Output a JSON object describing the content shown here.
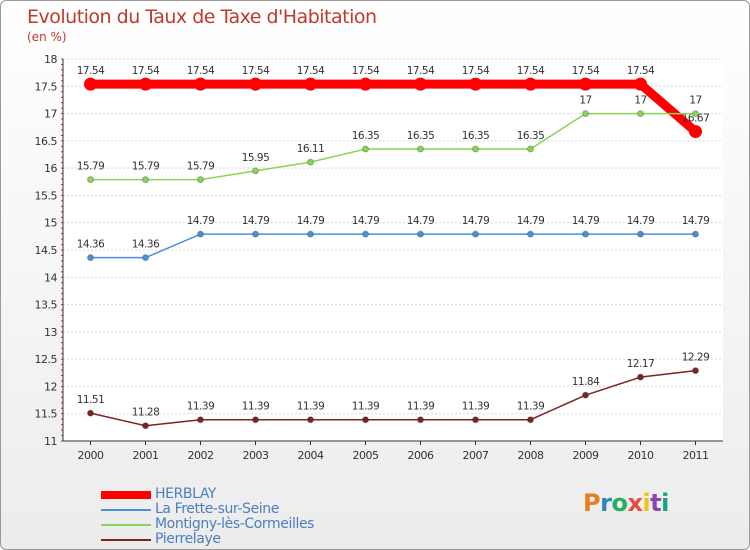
{
  "header": {
    "title": "Evolution du Taux de Taxe d'Habitation",
    "unit": "(en %)"
  },
  "logo": {
    "text": "Proxiti",
    "letter_colors": [
      "#e67e22",
      "#2e86c1",
      "#27ae60",
      "#e74c3c",
      "#f1c40f",
      "#8e44ad",
      "#16a085"
    ]
  },
  "chart_data": {
    "type": "line",
    "title": "Evolution du Taux de Taxe d'Habitation",
    "ylabel": "(en %)",
    "xlabel": "",
    "x": [
      "2000",
      "2001",
      "2002",
      "2003",
      "2004",
      "2005",
      "2006",
      "2007",
      "2008",
      "2009",
      "2010",
      "2011"
    ],
    "ylim": [
      11,
      18
    ],
    "yticks": [
      "11",
      "11.5",
      "12",
      "12.5",
      "13",
      "13.5",
      "14",
      "14.5",
      "15",
      "15.5",
      "16",
      "16.5",
      "17",
      "17.5",
      "18"
    ],
    "grid": "horizontal",
    "legend_position": "bottom-left",
    "series": [
      {
        "name": "HERBLAY",
        "color": "#ff0000",
        "values": [
          17.54,
          17.54,
          17.54,
          17.54,
          17.54,
          17.54,
          17.54,
          17.54,
          17.54,
          17.54,
          17.54,
          16.67
        ],
        "labels": [
          "17.54",
          "17.54",
          "17.54",
          "17.54",
          "17.54",
          "17.54",
          "17.54",
          "17.54",
          "17.54",
          "17.54",
          "17.54",
          "16.67"
        ]
      },
      {
        "name": "La Frette-sur-Seine",
        "color": "#4a90d9",
        "values": [
          14.36,
          14.36,
          14.79,
          14.79,
          14.79,
          14.79,
          14.79,
          14.79,
          14.79,
          14.79,
          14.79,
          14.79
        ],
        "labels": [
          "14.36",
          "14.36",
          "14.79",
          "14.79",
          "14.79",
          "14.79",
          "14.79",
          "14.79",
          "14.79",
          "14.79",
          "14.79",
          "14.79"
        ]
      },
      {
        "name": "Montigny-lès-Cormeilles",
        "color": "#88d455",
        "values": [
          15.79,
          15.79,
          15.79,
          15.95,
          16.11,
          16.35,
          16.35,
          16.35,
          16.35,
          17,
          17,
          17
        ],
        "labels": [
          "15.79",
          "15.79",
          "15.79",
          "15.95",
          "16.11",
          "16.35",
          "16.35",
          "16.35",
          "16.35",
          "17",
          "17",
          "17"
        ]
      },
      {
        "name": "Pierrelaye",
        "color": "#7a2424",
        "values": [
          11.51,
          11.28,
          11.39,
          11.39,
          11.39,
          11.39,
          11.39,
          11.39,
          11.39,
          11.84,
          12.17,
          12.29
        ],
        "labels": [
          "11.51",
          "11.28",
          "11.39",
          "11.39",
          "11.39",
          "11.39",
          "11.39",
          "11.39",
          "11.39",
          "11.84",
          "12.17",
          "12.29"
        ]
      }
    ]
  }
}
